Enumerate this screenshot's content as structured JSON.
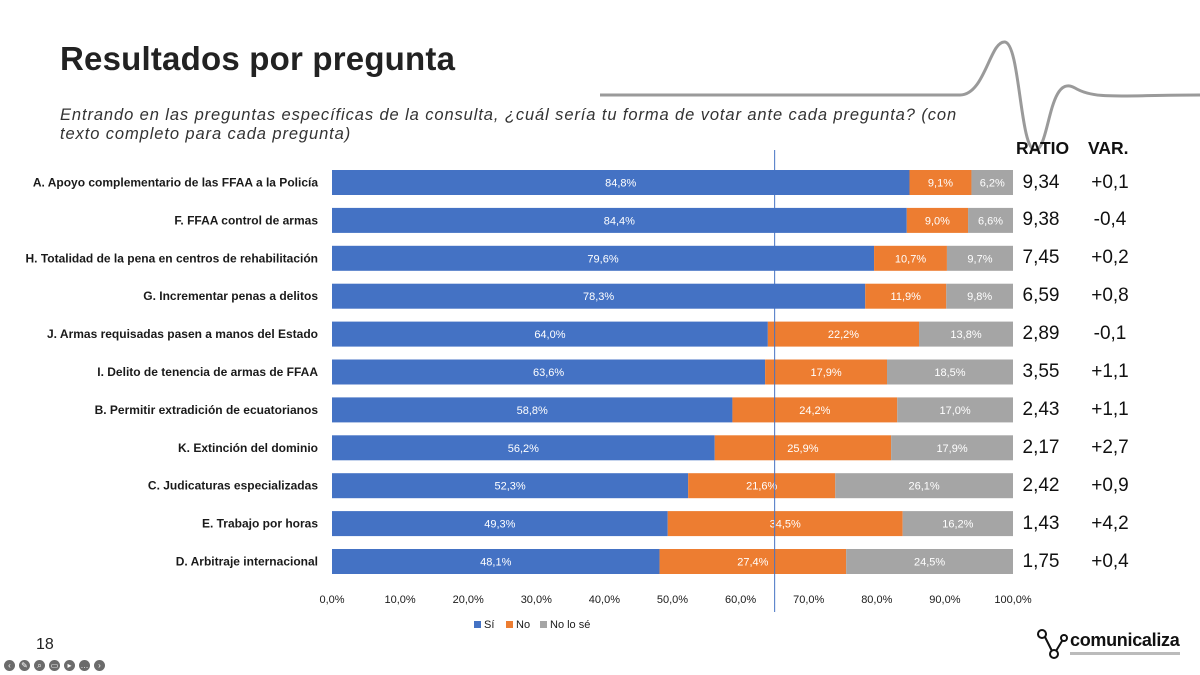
{
  "header": {
    "title": "Resultados por pregunta",
    "subtitle": "Entrando en las preguntas específicas de la consulta, ¿cuál sería tu forma de votar ante cada pregunta? (con texto completo para cada pregunta)"
  },
  "columns": {
    "ratio": "RATIO",
    "var": "VAR."
  },
  "page_number": "18",
  "logo": {
    "text": "comunicaliza"
  },
  "toolbar_icons": [
    "prev-icon",
    "pen-icon",
    "zoom-icon",
    "subtitles-icon",
    "video-icon",
    "more-icon",
    "next-icon"
  ],
  "chart_data": {
    "type": "bar",
    "orientation": "horizontal",
    "stacked": true,
    "categories": [
      "A. Apoyo complementario de las FFAA a la Policía",
      "F. FFAA control de armas",
      "H. Totalidad de la pena en centros de rehabilitación",
      "G. Incrementar penas a delitos",
      "J. Armas requisadas pasen a manos del Estado",
      "I. Delito de tenencia de armas de FFAA",
      "B. Permitir extradición de ecuatorianos",
      "K. Extinción del dominio",
      "C. Judicaturas especializadas",
      "E. Trabajo por horas",
      "D. Arbitraje internacional"
    ],
    "series": [
      {
        "name": "Sí",
        "color": "#4472C4",
        "values": [
          84.8,
          84.4,
          79.6,
          78.3,
          64.0,
          63.6,
          58.8,
          56.2,
          52.3,
          49.3,
          48.1
        ],
        "labels": [
          "84,8%",
          "84,4%",
          "79,6%",
          "78,3%",
          "64,0%",
          "63,6%",
          "58,8%",
          "56,2%",
          "52,3%",
          "49,3%",
          "48,1%"
        ]
      },
      {
        "name": "No",
        "color": "#ED7D31",
        "values": [
          9.1,
          9.0,
          10.7,
          11.9,
          22.2,
          17.9,
          24.2,
          25.9,
          21.6,
          34.5,
          27.4
        ],
        "labels": [
          "9,1%",
          "9,0%",
          "10,7%",
          "11,9%",
          "22,2%",
          "17,9%",
          "24,2%",
          "25,9%",
          "21,6%",
          "34,5%",
          "27,4%"
        ]
      },
      {
        "name": "No lo sé",
        "color": "#A5A5A5",
        "values": [
          6.2,
          6.6,
          9.7,
          9.8,
          13.8,
          18.5,
          17.0,
          17.9,
          26.1,
          16.2,
          24.5
        ],
        "labels": [
          "6,2%",
          "6,6%",
          "9,7%",
          "9,8%",
          "13,8%",
          "18,5%",
          "17,0%",
          "17,9%",
          "26,1%",
          "16,2%",
          "24,5%"
        ]
      }
    ],
    "xlim": [
      0,
      100
    ],
    "x_ticks": [
      "0,0%",
      "10,0%",
      "20,0%",
      "30,0%",
      "40,0%",
      "50,0%",
      "60,0%",
      "70,0%",
      "80,0%",
      "90,0%",
      "100,0%"
    ],
    "reference_line": 65,
    "legend_position": "bottom",
    "ratio": [
      "9,34",
      "9,38",
      "7,45",
      "6,59",
      "2,89",
      "3,55",
      "2,43",
      "2,17",
      "2,42",
      "1,43",
      "1,75"
    ],
    "var": [
      "+0,1",
      "-0,4",
      "+0,2",
      "+0,8",
      "-0,1",
      "+1,1",
      "+1,1",
      "+2,7",
      "+0,9",
      "+4,2",
      "+0,4"
    ]
  }
}
